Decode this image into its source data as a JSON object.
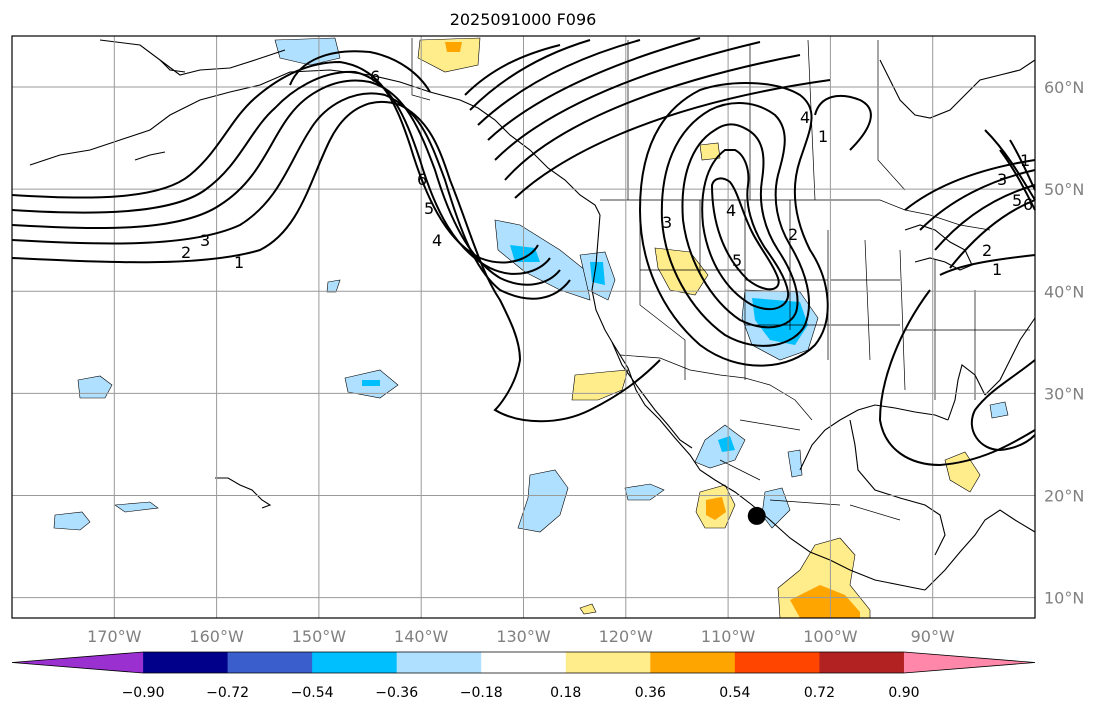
{
  "title": "2025091000 F096",
  "map": {
    "lon_range": [
      -180,
      -80
    ],
    "lat_range": [
      8,
      65
    ],
    "lon_ticks": [
      {
        "value": -170,
        "label": "170°W"
      },
      {
        "value": -160,
        "label": "160°W"
      },
      {
        "value": -150,
        "label": "150°W"
      },
      {
        "value": -140,
        "label": "140°W"
      },
      {
        "value": -130,
        "label": "130°W"
      },
      {
        "value": -120,
        "label": "120°W"
      },
      {
        "value": -110,
        "label": "110°W"
      },
      {
        "value": -100,
        "label": "100°W"
      },
      {
        "value": -90,
        "label": "90°W"
      }
    ],
    "lat_ticks": [
      {
        "value": 10,
        "label": "10°N"
      },
      {
        "value": 20,
        "label": "20°N"
      },
      {
        "value": 30,
        "label": "30°N"
      },
      {
        "value": 40,
        "label": "40°N"
      },
      {
        "value": 50,
        "label": "50°N"
      },
      {
        "value": 60,
        "label": "60°N"
      }
    ],
    "gridlines": true,
    "marker": {
      "label": "black-dot",
      "lon": -107.2,
      "lat": 18.0
    }
  },
  "contour_labels": [
    "6",
    "6",
    "5",
    "4",
    "3",
    "2",
    "1",
    "4",
    "3",
    "5",
    "4",
    "2",
    "1",
    "1",
    "3",
    "5",
    "6",
    "2",
    "1"
  ],
  "colorbar": {
    "colors": [
      "#9b30d0",
      "#00008b",
      "#3a5fcd",
      "#00bfff",
      "#b0e0ff",
      "#ffffff",
      "#ffec8b",
      "#ffa500",
      "#ff4500",
      "#b22222",
      "#ff88aa"
    ],
    "labels": [
      "−0.90",
      "−0.72",
      "−0.54",
      "−0.36",
      "−0.18",
      "0.18",
      "0.36",
      "0.54",
      "0.72",
      "0.90"
    ]
  }
}
